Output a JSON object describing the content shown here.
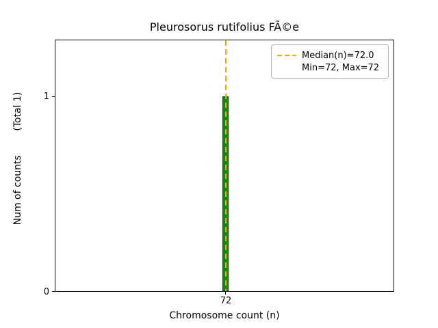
{
  "title": "Pleurosorus rutifolius FÃ©e",
  "axes": {
    "xlabel": "Chromosome count (n)",
    "ylabel": "Num of counts        (Total 1)",
    "xticks": [
      "72"
    ],
    "yticks": [
      "0",
      "1"
    ]
  },
  "legend": {
    "line1": "Median(n)=72.0",
    "line2": "Min=72, Max=72"
  },
  "colors": {
    "bar_fill": "#0a8a0a",
    "bar_edge": "#054d05",
    "median_line": "#ffa500",
    "legend_border": "#b3b3b3",
    "axes_spine": "#000000"
  },
  "chart_data": {
    "type": "bar",
    "title": "Pleurosorus rutifolius FÃ©e",
    "xlabel": "Chromosome count (n)",
    "ylabel": "Num of counts        (Total 1)",
    "x": [
      72
    ],
    "counts": [
      1
    ],
    "total": 1,
    "median": 72.0,
    "min": 72,
    "max": 72,
    "xticks": [
      72
    ],
    "yticks": [
      0,
      1
    ],
    "ylim": [
      0,
      1.29
    ],
    "grid": false,
    "bar_color": "green",
    "median_line_color": "orange",
    "median_line_style": "dashed",
    "legend_entries": [
      "Median(n)=72.0",
      "Min=72, Max=72"
    ],
    "legend_position": "upper right"
  }
}
